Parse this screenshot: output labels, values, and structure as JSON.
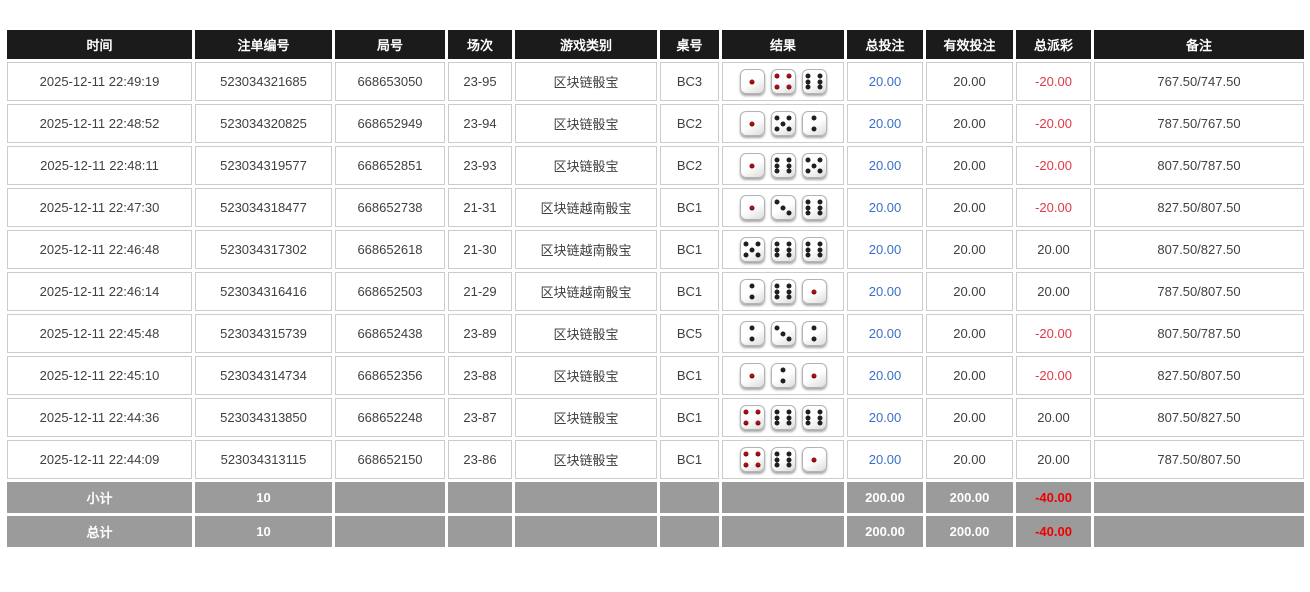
{
  "colors": {
    "header_bg": "#1b1b1b",
    "footer_bg": "#9b9b9b",
    "bet_amount_blue": "#3a6fc8",
    "negative_red": "#e13a45",
    "cell_border": "#cccccc",
    "dice_dot_black": "#1f1f1f",
    "dice_dot_red": "#a81014"
  },
  "table": {
    "headers": [
      "时间",
      "注单编号",
      "局号",
      "场次",
      "游戏类别",
      "桌号",
      "结果",
      "总投注",
      "有效投注",
      "总派彩",
      "备注"
    ],
    "result_icon": "dice-icons",
    "rows": [
      {
        "time": "2025-12-11 22:49:19",
        "bet_id": "523034321685",
        "round": "668653050",
        "session": "23-95",
        "game": "区块链骰宝",
        "table": "BC3",
        "dice": [
          1,
          4,
          6
        ],
        "total_bet": "20.00",
        "valid_bet": "20.00",
        "payout": "-20.00",
        "remark": "767.50/747.50"
      },
      {
        "time": "2025-12-11 22:48:52",
        "bet_id": "523034320825",
        "round": "668652949",
        "session": "23-94",
        "game": "区块链骰宝",
        "table": "BC2",
        "dice": [
          1,
          5,
          2
        ],
        "total_bet": "20.00",
        "valid_bet": "20.00",
        "payout": "-20.00",
        "remark": "787.50/767.50"
      },
      {
        "time": "2025-12-11 22:48:11",
        "bet_id": "523034319577",
        "round": "668652851",
        "session": "23-93",
        "game": "区块链骰宝",
        "table": "BC2",
        "dice": [
          1,
          6,
          5
        ],
        "total_bet": "20.00",
        "valid_bet": "20.00",
        "payout": "-20.00",
        "remark": "807.50/787.50"
      },
      {
        "time": "2025-12-11 22:47:30",
        "bet_id": "523034318477",
        "round": "668652738",
        "session": "21-31",
        "game": "区块链越南骰宝",
        "table": "BC1",
        "dice": [
          1,
          3,
          6
        ],
        "total_bet": "20.00",
        "valid_bet": "20.00",
        "payout": "-20.00",
        "remark": "827.50/807.50"
      },
      {
        "time": "2025-12-11 22:46:48",
        "bet_id": "523034317302",
        "round": "668652618",
        "session": "21-30",
        "game": "区块链越南骰宝",
        "table": "BC1",
        "dice": [
          5,
          6,
          6
        ],
        "total_bet": "20.00",
        "valid_bet": "20.00",
        "payout": "20.00",
        "remark": "807.50/827.50"
      },
      {
        "time": "2025-12-11 22:46:14",
        "bet_id": "523034316416",
        "round": "668652503",
        "session": "21-29",
        "game": "区块链越南骰宝",
        "table": "BC1",
        "dice": [
          2,
          6,
          1
        ],
        "total_bet": "20.00",
        "valid_bet": "20.00",
        "payout": "20.00",
        "remark": "787.50/807.50"
      },
      {
        "time": "2025-12-11 22:45:48",
        "bet_id": "523034315739",
        "round": "668652438",
        "session": "23-89",
        "game": "区块链骰宝",
        "table": "BC5",
        "dice": [
          2,
          3,
          2
        ],
        "total_bet": "20.00",
        "valid_bet": "20.00",
        "payout": "-20.00",
        "remark": "807.50/787.50"
      },
      {
        "time": "2025-12-11 22:45:10",
        "bet_id": "523034314734",
        "round": "668652356",
        "session": "23-88",
        "game": "区块链骰宝",
        "table": "BC1",
        "dice": [
          1,
          2,
          1
        ],
        "total_bet": "20.00",
        "valid_bet": "20.00",
        "payout": "-20.00",
        "remark": "827.50/807.50"
      },
      {
        "time": "2025-12-11 22:44:36",
        "bet_id": "523034313850",
        "round": "668652248",
        "session": "23-87",
        "game": "区块链骰宝",
        "table": "BC1",
        "dice": [
          4,
          6,
          6
        ],
        "total_bet": "20.00",
        "valid_bet": "20.00",
        "payout": "20.00",
        "remark": "807.50/827.50"
      },
      {
        "time": "2025-12-11 22:44:09",
        "bet_id": "523034313115",
        "round": "668652150",
        "session": "23-86",
        "game": "区块链骰宝",
        "table": "BC1",
        "dice": [
          4,
          6,
          1
        ],
        "total_bet": "20.00",
        "valid_bet": "20.00",
        "payout": "20.00",
        "remark": "787.50/807.50"
      }
    ],
    "footer": [
      {
        "label": "小计",
        "count": "10",
        "total_bet": "200.00",
        "valid_bet": "200.00",
        "payout": "-40.00"
      },
      {
        "label": "总计",
        "count": "10",
        "total_bet": "200.00",
        "valid_bet": "200.00",
        "payout": "-40.00"
      }
    ]
  }
}
